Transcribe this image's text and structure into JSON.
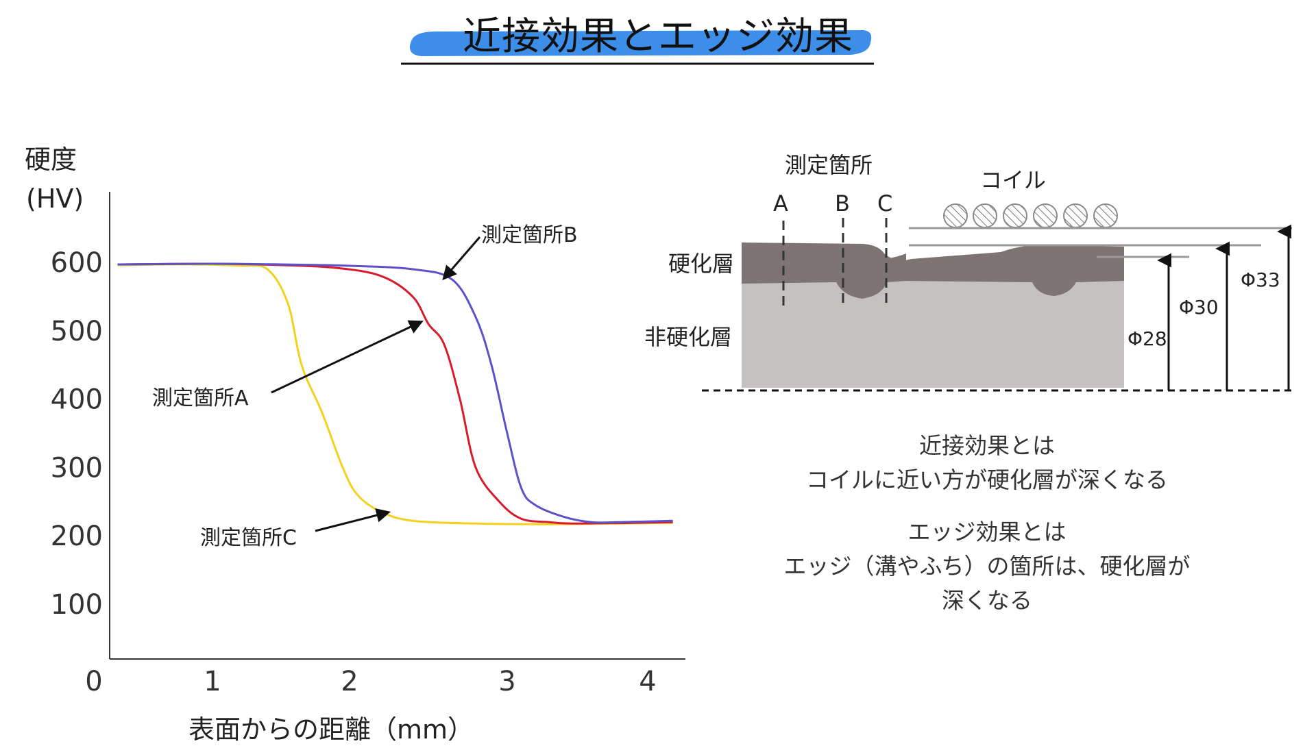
{
  "title": "近接効果とエッジ効果",
  "chart": {
    "y_axis_label_line1": "硬度",
    "y_axis_label_line2": "(HV)",
    "x_axis_label": "表面からの距離（mm）",
    "y_ticks": [
      "600",
      "500",
      "400",
      "300",
      "200",
      "100"
    ],
    "x_ticks": [
      "0",
      "1",
      "2",
      "3",
      "4"
    ],
    "annotations": {
      "a": "測定箇所A",
      "b": "測定箇所B",
      "c": "測定箇所C"
    },
    "colors": {
      "a": "#d81b2c",
      "b": "#5b52c9",
      "c": "#f2d21e"
    }
  },
  "chart_data": {
    "type": "line",
    "ylabel": "硬度 (HV)",
    "xlabel": "表面からの距離（mm）",
    "xlim": [
      0,
      4.3
    ],
    "ylim": [
      0,
      650
    ],
    "series": [
      {
        "name": "測定箇所A",
        "x": [
          0.2,
          1,
          1.5,
          1.9,
          2.2,
          2.4,
          2.5,
          2.6,
          2.7,
          2.8,
          2.95,
          3.1,
          3.3,
          3.5,
          4.2
        ],
        "y": [
          597,
          598,
          596,
          592,
          580,
          550,
          510,
          480,
          400,
          300,
          250,
          225,
          220,
          218,
          220
        ]
      },
      {
        "name": "測定箇所B",
        "x": [
          0.2,
          1,
          1.5,
          2.0,
          2.4,
          2.65,
          2.8,
          2.9,
          3.0,
          3.1,
          3.2,
          3.4,
          3.6,
          3.8,
          4.2
        ],
        "y": [
          597,
          598,
          597,
          595,
          590,
          575,
          520,
          450,
          350,
          270,
          245,
          228,
          220,
          220,
          222
        ]
      },
      {
        "name": "測定箇所C",
        "x": [
          0.2,
          0.8,
          1.2,
          1.4,
          1.55,
          1.65,
          1.8,
          1.95,
          2.05,
          2.2,
          2.4,
          2.8,
          3.3,
          3.8,
          4.2
        ],
        "y": [
          596,
          597,
          595,
          590,
          540,
          450,
          380,
          300,
          260,
          235,
          222,
          218,
          217,
          218,
          219
        ]
      }
    ]
  },
  "diagram": {
    "measure_label": "測定箇所",
    "points": [
      "A",
      "B",
      "C"
    ],
    "coil_label": "コイル",
    "hardened_label": "硬化層",
    "unhardened_label": "非硬化層",
    "dims": [
      "Φ28",
      "Φ30",
      "Φ33"
    ],
    "colors": {
      "hardened": "#7d7473",
      "unhardened": "#c4c1c0"
    }
  },
  "descriptions": {
    "proximity_title": "近接効果とは",
    "proximity_body": "コイルに近い方が硬化層が深くなる",
    "edge_title": "エッジ効果とは",
    "edge_body_line1": "エッジ（溝やふち）の箇所は、硬化層が",
    "edge_body_line2": "深くなる"
  }
}
